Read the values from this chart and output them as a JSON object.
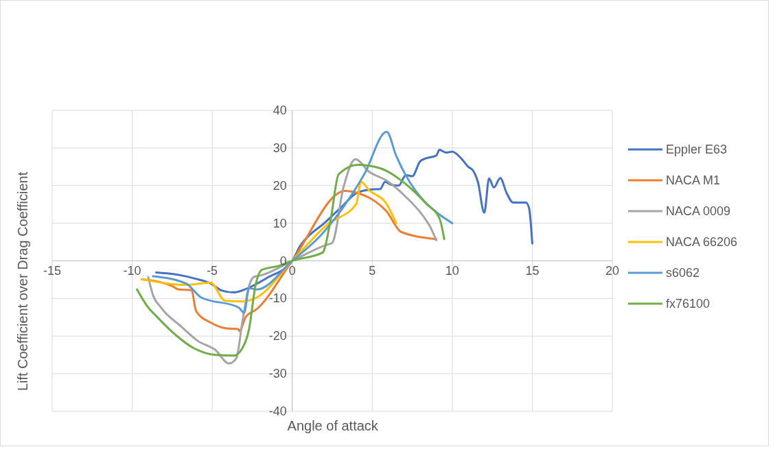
{
  "chart_data": {
    "type": "line",
    "xlabel": "Angle of attack",
    "ylabel": "Lift Coefficient over Drag Coefficient",
    "xlim": [
      -15,
      20
    ],
    "ylim": [
      -40,
      40
    ],
    "xticks": [
      -15,
      -10,
      -5,
      0,
      5,
      10,
      15,
      20
    ],
    "yticks": [
      -40,
      -30,
      -20,
      -10,
      0,
      10,
      20,
      30,
      40
    ],
    "grid": true,
    "legend": "right",
    "line_style": "solid",
    "series": [
      {
        "name": "Eppler E63",
        "color": "#4472c4",
        "x": [
          -8.5,
          -7,
          -6,
          -5.1,
          -4.4,
          -3.65,
          -2.8,
          -1.6,
          0,
          0.5,
          1,
          2,
          3,
          4.1,
          5,
          5.5,
          5.8,
          6.2,
          6.65,
          7.1,
          7.5,
          8,
          8.4,
          9,
          9.2,
          9.6,
          10,
          10.5,
          11,
          11.3,
          11.6,
          12,
          12.3,
          12.6,
          13,
          13.4,
          13.8,
          14.6,
          14.8,
          15
        ],
        "values": [
          -3.1,
          -3.8,
          -4.8,
          -6,
          -7.9,
          -8.4,
          -7.3,
          -4.6,
          0,
          4,
          6.5,
          10,
          14,
          18.2,
          19,
          19.1,
          21,
          20.2,
          20,
          22.8,
          22.5,
          26.5,
          27.3,
          28,
          29.5,
          28.8,
          29,
          27.5,
          25,
          24,
          21,
          12.8,
          21.9,
          19.5,
          22,
          18,
          15.5,
          15.5,
          14,
          4.6
        ]
      },
      {
        "name": "NACA M1",
        "color": "#ed7d31",
        "x": [
          -9.4,
          -7.5,
          -7.1,
          -6.3,
          -6,
          -5.1,
          -4.2,
          -3.35,
          -3.3,
          -2.9,
          -2.2,
          0,
          3.3,
          4.1,
          4.8,
          5.9,
          6.8,
          9
        ],
        "values": [
          -4.9,
          -6.7,
          -7.6,
          -7.8,
          -13.4,
          -16.4,
          -17.9,
          -18.2,
          -18.7,
          -14.9,
          -12.8,
          0,
          18.6,
          18,
          16.8,
          13.1,
          7.7,
          5.8
        ]
      },
      {
        "name": "NACA 0009",
        "color": "#a5a5a5",
        "x": [
          -9,
          -8.7,
          -8.2,
          -6.9,
          -5.9,
          -4.8,
          -3.95,
          -3.5,
          -3.1,
          -2.7,
          -2.4,
          -1.9,
          0,
          2.1,
          2.5,
          3.2,
          3.95,
          4.8,
          5.9,
          7.1,
          8.2,
          8.6,
          9
        ],
        "values": [
          -4.3,
          -9.1,
          -12.4,
          -17.6,
          -21.3,
          -23.7,
          -27.3,
          -26,
          -15.8,
          -6.7,
          -4.3,
          -3.8,
          0,
          4.2,
          4.8,
          19.5,
          27,
          23.7,
          21.3,
          17,
          11.8,
          9.2,
          5.5
        ]
      },
      {
        "name": "NACA 66206",
        "color": "#ffc000",
        "x": [
          -9.4,
          -6.65,
          -5.1,
          -4.2,
          -3.1,
          -2.2,
          0,
          2.2,
          4,
          4.3,
          4.8,
          5.9,
          6.5
        ],
        "values": [
          -4.9,
          -6.4,
          -5.8,
          -10.6,
          -10.8,
          -9.7,
          0,
          9.7,
          15.1,
          21,
          18.8,
          15.1,
          10
        ]
      },
      {
        "name": "s6062",
        "color": "#5b9bd5",
        "x": [
          -8.7,
          -6.65,
          -5.7,
          -3.35,
          -3,
          -2.7,
          -2.2,
          0,
          1.9,
          4.5,
          5.9,
          6.5,
          10
        ],
        "values": [
          -4.1,
          -6,
          -9.7,
          -12.4,
          -13.8,
          -7.3,
          -7.6,
          0,
          7.3,
          23,
          34.3,
          27.9,
          10
        ]
      },
      {
        "name": "fx76100",
        "color": "#70ad47",
        "x": [
          -9.7,
          -9.1,
          -8.4,
          -7.2,
          -6.2,
          -4.8,
          -3.65,
          -3.1,
          -2.7,
          -2.3,
          -1.9,
          -0.8,
          0,
          1.9,
          2.4,
          2.9,
          4.1,
          5.5,
          7.1,
          8.4,
          9.2,
          9.5
        ],
        "values": [
          -7.6,
          -11.8,
          -15.1,
          -20,
          -23.1,
          -25,
          -25.2,
          -23.1,
          -18.2,
          -6.7,
          -2.4,
          -1.3,
          0,
          2.2,
          10.9,
          23,
          25.5,
          24.6,
          20.4,
          15.1,
          11.3,
          5.8
        ]
      }
    ]
  }
}
